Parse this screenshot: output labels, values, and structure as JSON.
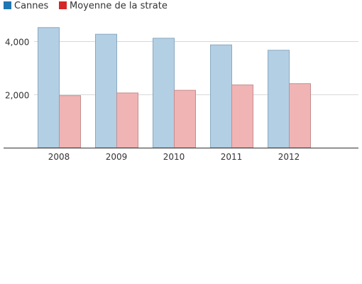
{
  "chart_data": {
    "type": "bar",
    "title": "",
    "xlabel": "",
    "ylabel": "",
    "categories": [
      "2008",
      "2009",
      "2010",
      "2011",
      "2012"
    ],
    "series": [
      {
        "name": "Cannes",
        "values": [
          4500,
          4250,
          4100,
          3850,
          3650
        ],
        "color": "#1f77b4",
        "fill": "#b3cfe4",
        "stroke": "#8aa9c1"
      },
      {
        "name": "Moyenne de la strate",
        "values": [
          1950,
          2050,
          2150,
          2350,
          2400
        ],
        "color": "#d62728",
        "fill": "#f0b4b4",
        "stroke": "#c58d8d"
      }
    ],
    "ylim": [
      0,
      5000
    ],
    "yticks": [
      2000,
      4000
    ],
    "ytick_labels": [
      "2,000",
      "4,000"
    ],
    "grid": true,
    "legend": "top-left"
  }
}
